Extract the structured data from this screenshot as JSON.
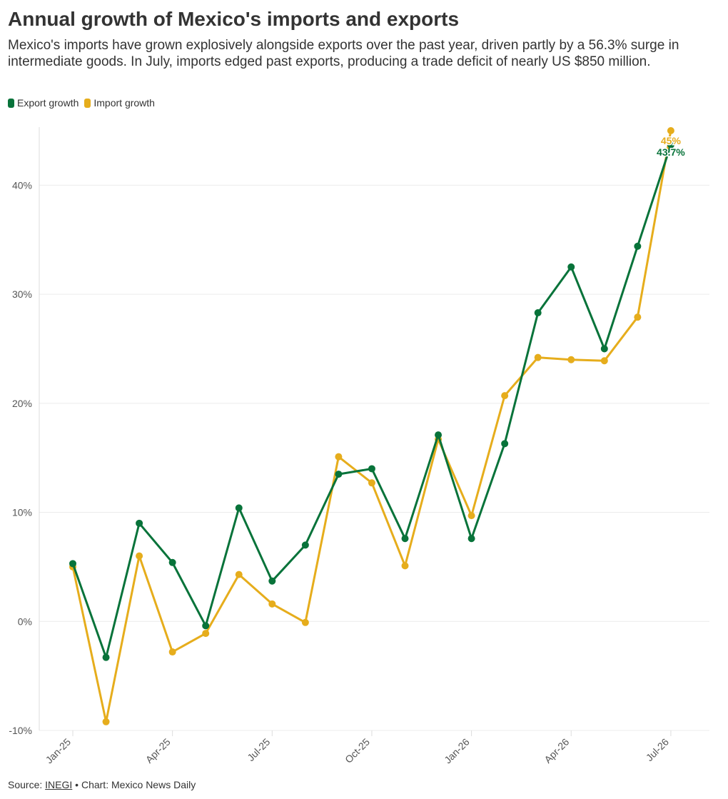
{
  "title": "Annual growth of Mexico's imports and exports",
  "subtitle": "Mexico's imports have grown explosively alongside exports over the past year, driven partly by a 56.3% surge in intermediate goods. In July, imports edged past exports, producing a trade deficit of nearly US $850 million.",
  "legend": {
    "export_label": "Export growth",
    "import_label": "Import growth"
  },
  "footer": {
    "source_prefix": "Source:",
    "source_link": "INEGI",
    "separator": "•",
    "credit": "Chart: Mexico News Daily"
  },
  "colors": {
    "export": "#08733a",
    "import": "#e6ad1c",
    "grid": "#ececec",
    "axis_text": "#555555"
  },
  "chart_data": {
    "type": "line",
    "x": [
      "Jan-25",
      "Feb-25",
      "Mar-25",
      "Apr-25",
      "May-25",
      "Jun-25",
      "Jul-25",
      "Aug-25",
      "Sep-25",
      "Oct-25",
      "Nov-25",
      "Dec-25",
      "Jan-26",
      "Feb-26",
      "Mar-26",
      "Apr-26",
      "May-26",
      "Jun-26",
      "Jul-26"
    ],
    "tick_labels": [
      "Jan-25",
      "Apr-25",
      "Jul-25",
      "Oct-25",
      "Jan-26",
      "Apr-26",
      "Jul-26"
    ],
    "tick_indices": [
      0,
      3,
      6,
      9,
      12,
      15,
      18
    ],
    "y_ticks": [
      -10,
      0,
      10,
      20,
      30,
      40
    ],
    "y_tick_labels": [
      "-10%",
      "0%",
      "10%",
      "20%",
      "30%",
      "40%"
    ],
    "ylim": [
      -10,
      45
    ],
    "grid": true,
    "legend_position": "top-left",
    "series": [
      {
        "name": "Export growth",
        "color_key": "export",
        "values": [
          5.3,
          -3.3,
          9.0,
          5.4,
          -0.4,
          10.4,
          3.7,
          7.0,
          13.5,
          14.0,
          7.6,
          17.1,
          7.6,
          16.3,
          28.3,
          32.5,
          25.0,
          34.4,
          43.7
        ],
        "end_label": "43.7%"
      },
      {
        "name": "Import growth",
        "color_key": "import",
        "values": [
          5.0,
          -9.2,
          6.0,
          -2.8,
          -1.1,
          4.3,
          1.6,
          -0.1,
          15.1,
          12.7,
          5.1,
          16.7,
          9.7,
          20.7,
          24.2,
          24.0,
          23.9,
          27.9,
          45.0
        ],
        "end_label": "45%"
      }
    ]
  }
}
